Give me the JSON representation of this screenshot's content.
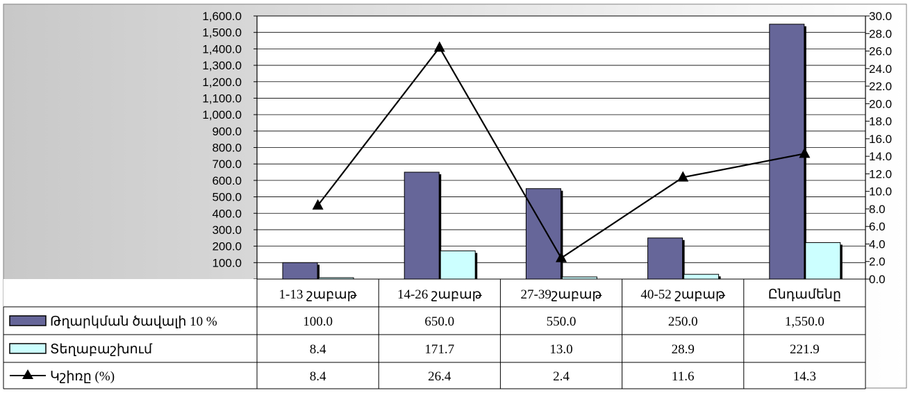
{
  "colors": {
    "bar1": "#666699",
    "bar2": "#ccffff",
    "line": "#000000",
    "plot_bg_left": "#c8c8c8",
    "plot_bg_right": "#ffffff"
  },
  "chart_data": {
    "type": "bar",
    "categories": [
      "1-13 շաբաթ",
      "14-26 շաբաթ",
      "27-39շաբաթ",
      "40-52 շաբաթ",
      "Ընդամենը"
    ],
    "left_axis": {
      "ylim": [
        0,
        1600
      ],
      "ticks": [
        0,
        100,
        200,
        300,
        400,
        500,
        600,
        700,
        800,
        900,
        1000,
        1100,
        1200,
        1300,
        1400,
        1500,
        1600
      ],
      "tick_labels": [
        "-",
        "100.0",
        "200.0",
        "300.0",
        "400.0",
        "500.0",
        "600.0",
        "700.0",
        "800.0",
        "900.0",
        "1,000.0",
        "1,100.0",
        "1,200.0",
        "1,300.0",
        "1,400.0",
        "1,500.0",
        "1,600.0"
      ]
    },
    "right_axis": {
      "ylim": [
        0,
        30
      ],
      "ticks": [
        0,
        2,
        4,
        6,
        8,
        10,
        12,
        14,
        16,
        18,
        20,
        22,
        24,
        26,
        28,
        30
      ],
      "tick_labels": [
        "0.0",
        "2.0",
        "4.0",
        "6.0",
        "8.0",
        "10.0",
        "12.0",
        "14.0",
        "16.0",
        "18.0",
        "20.0",
        "22.0",
        "24.0",
        "26.0",
        "28.0",
        "30.0"
      ]
    },
    "series": [
      {
        "name": "Թղարկման ծավալի 10 %",
        "type": "bar",
        "axis": "left",
        "values": [
          100.0,
          650.0,
          550.0,
          250.0,
          1550.0
        ],
        "labels": [
          "100.0",
          "650.0",
          "550.0",
          "250.0",
          "1,550.0"
        ]
      },
      {
        "name": "Տեղաբաշխում",
        "type": "bar",
        "axis": "left",
        "values": [
          8.4,
          171.7,
          13.0,
          28.9,
          221.9
        ],
        "labels": [
          "8.4",
          "171.7",
          "13.0",
          "28.9",
          "221.9"
        ]
      },
      {
        "name": "Կշիռը (%)",
        "type": "line",
        "axis": "right",
        "values": [
          8.4,
          26.4,
          2.4,
          11.6,
          14.3
        ],
        "labels": [
          "8.4",
          "26.4",
          "2.4",
          "11.6",
          "14.3"
        ]
      }
    ],
    "grid": true,
    "legend": "data-table"
  }
}
